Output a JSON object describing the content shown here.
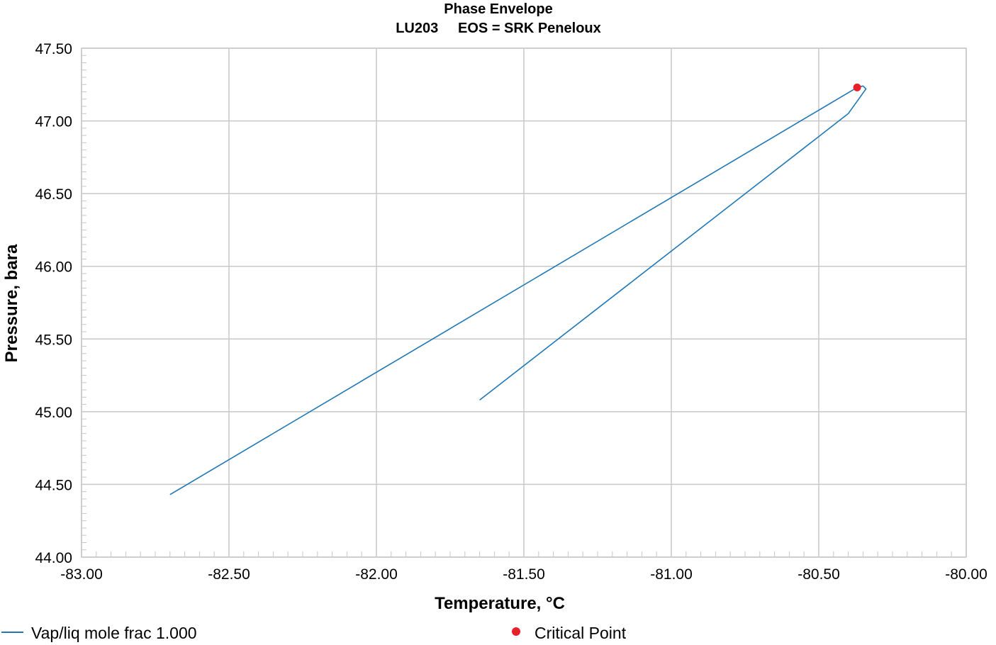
{
  "chart_data": {
    "type": "line",
    "title": "Phase Envelope",
    "subtitle": "LU203     EOS = SRK Peneloux",
    "xlabel": "Temperature, °C",
    "ylabel": "Pressure, bara",
    "xlim": [
      -83.0,
      -80.0
    ],
    "ylim": [
      44.0,
      47.5
    ],
    "x_ticks": [
      "-83.00",
      "-82.50",
      "-82.00",
      "-81.50",
      "-81.00",
      "-80.50",
      "-80.00"
    ],
    "y_ticks": [
      "44.00",
      "44.50",
      "45.00",
      "45.50",
      "46.00",
      "46.50",
      "47.00",
      "47.50"
    ],
    "grid": true,
    "legend_position": "bottom",
    "series": [
      {
        "name": "Vap/liq mole frac 1.000",
        "color": "#1f77b4",
        "x": [
          -82.7,
          -80.37,
          -80.35,
          -80.34,
          -80.4,
          -81.65
        ],
        "y": [
          44.43,
          47.23,
          47.24,
          47.22,
          47.05,
          45.08
        ]
      }
    ],
    "critical_point": {
      "name": "Critical Point",
      "color": "#e8202a",
      "x": -80.37,
      "y": 47.23
    }
  }
}
